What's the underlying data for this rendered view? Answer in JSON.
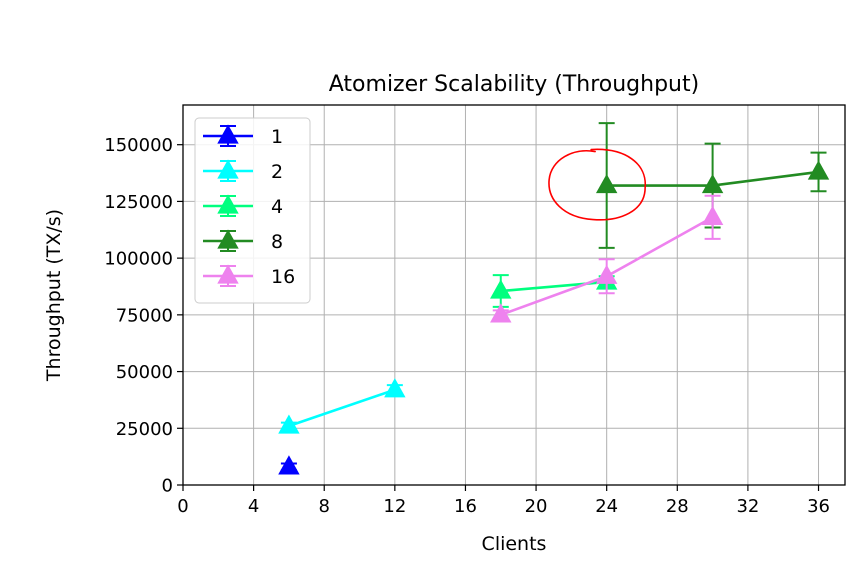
{
  "chart_data": {
    "type": "line",
    "title": "Atomizer Scalability (Throughput)",
    "xlabel": "Clients",
    "ylabel": "Throughput (TX/s)",
    "xlim": [
      0,
      37.5
    ],
    "ylim": [
      0,
      167500
    ],
    "xticks": [
      0,
      4,
      8,
      12,
      16,
      20,
      24,
      28,
      32,
      36
    ],
    "yticks": [
      0,
      25000,
      50000,
      75000,
      100000,
      125000,
      150000
    ],
    "grid": true,
    "legend_position": "top-left",
    "series": [
      {
        "name": "1",
        "color": "#0000ff",
        "x": [
          6
        ],
        "y": [
          8000
        ],
        "err": [
          1500
        ]
      },
      {
        "name": "2",
        "color": "#00ffff",
        "x": [
          6,
          12
        ],
        "y": [
          26000,
          42000
        ],
        "err": [
          1500,
          2000
        ]
      },
      {
        "name": "4",
        "color": "#00ff7f",
        "x": [
          18,
          24
        ],
        "y": [
          85500,
          89500
        ],
        "err": [
          7000,
          2500
        ]
      },
      {
        "name": "8",
        "color": "#228b22",
        "x": [
          24,
          30,
          36
        ],
        "y": [
          132000,
          132000,
          138000
        ],
        "err": [
          27500,
          18500,
          8500
        ]
      },
      {
        "name": "16",
        "color": "#ee82ee",
        "x": [
          18,
          24,
          30
        ],
        "y": [
          75000,
          92000,
          118000
        ],
        "err": [
          2000,
          7500,
          9500
        ]
      }
    ],
    "annotation": {
      "type": "hand-drawn-circle",
      "color": "#ff0000",
      "center": [
        23.8,
        132000
      ]
    }
  }
}
